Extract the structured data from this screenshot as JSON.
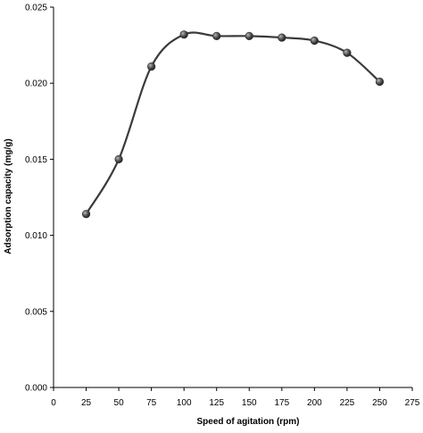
{
  "chart_data": {
    "type": "line",
    "title": "",
    "xlabel": "Speed of agitation (rpm)",
    "ylabel": "Adsorption capacity (mg/g)",
    "xlim": [
      0,
      275
    ],
    "ylim": [
      0,
      0.025
    ],
    "x_ticks": [
      0,
      25,
      50,
      75,
      100,
      125,
      150,
      175,
      200,
      225,
      250,
      275
    ],
    "y_ticks": [
      0.0,
      0.005,
      0.01,
      0.015,
      0.02,
      0.025
    ],
    "x_tick_labels": [
      "0",
      "25",
      "50",
      "75",
      "100",
      "125",
      "150",
      "175",
      "200",
      "225",
      "250",
      "275"
    ],
    "y_tick_labels": [
      "0.000",
      "0.005",
      "0.010",
      "0.015",
      "0.020",
      "0.025"
    ],
    "grid": false,
    "legend": "none",
    "smooth": true,
    "line_color": "#3a3a3a",
    "marker_color": "#2e2e2e",
    "series": [
      {
        "x": [
          25,
          50,
          75,
          100,
          125,
          150,
          175,
          200,
          225,
          250
        ],
        "values": [
          0.0114,
          0.015,
          0.0211,
          0.0232,
          0.0231,
          0.0231,
          0.023,
          0.0228,
          0.022,
          0.0201
        ]
      }
    ]
  }
}
